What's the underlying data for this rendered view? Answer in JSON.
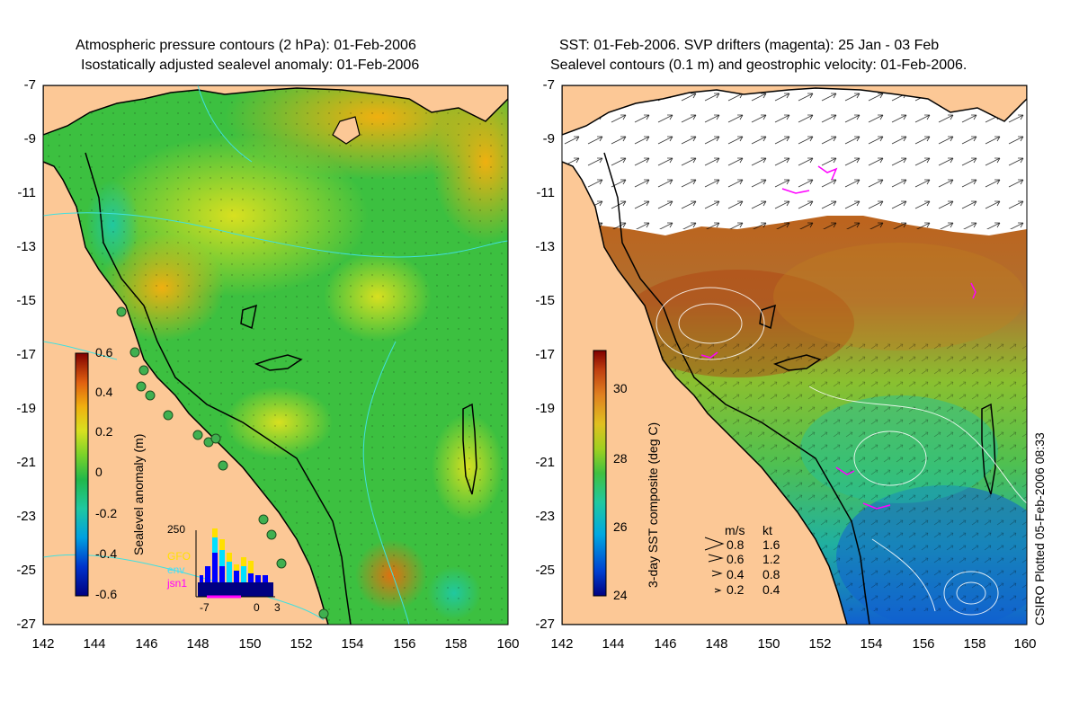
{
  "left": {
    "title1": "Atmospheric pressure contours (2 hPa): 01-Feb-2006",
    "title2": "Isostatically adjusted sealevel anomaly: 01-Feb-2006",
    "colorbar_label": "Sealevel anomaly (m)",
    "colorbar_ticks": [
      "0.6",
      "0.4",
      "0.2",
      "0",
      "-0.2",
      "-0.4",
      "-0.6"
    ],
    "colormap": [
      "#000080",
      "#0033cc",
      "#00a0e0",
      "#20c8a0",
      "#22b84a",
      "#7ad22a",
      "#d8e020",
      "#f0b010",
      "#e06010",
      "#b02010",
      "#800000"
    ],
    "histogram": {
      "y_tick": "250",
      "x_ticks": [
        "-7",
        "0",
        "3"
      ],
      "legend": [
        {
          "label": "GFO",
          "color": "#ffe000"
        },
        {
          "label": "env",
          "color": "#40e0ff"
        },
        {
          "label": "jsn1",
          "color": "#ff00ff"
        }
      ]
    }
  },
  "right": {
    "title1": "SST: 01-Feb-2006. SVP drifters (magenta): 25 Jan - 03 Feb",
    "title2": "Sealevel contours (0.1 m) and geostrophic velocity: 01-Feb-2006.",
    "colorbar_label": "3-day SST composite (deg C)",
    "colorbar_ticks": [
      "30",
      "28",
      "26",
      "24"
    ],
    "colormap": [
      "#000080",
      "#0040d0",
      "#00a8e0",
      "#20c8a0",
      "#40c040",
      "#a0d020",
      "#e0c020",
      "#e08020",
      "#c04010",
      "#800000"
    ],
    "velocity_legend": {
      "header": [
        "m/s",
        "kt"
      ],
      "rows": [
        [
          "0.8",
          "1.6"
        ],
        [
          "0.6",
          "1.2"
        ],
        [
          "0.4",
          "0.8"
        ],
        [
          "0.2",
          "0.4"
        ]
      ]
    },
    "credit": "CSIRO Plotted 05-Feb-2006 08:33"
  },
  "axes": {
    "x_ticks": [
      "142",
      "144",
      "146",
      "148",
      "150",
      "152",
      "154",
      "156",
      "158",
      "160"
    ],
    "y_ticks": [
      "-7",
      "-9",
      "-11",
      "-13",
      "-15",
      "-17",
      "-19",
      "-21",
      "-23",
      "-25",
      "-27"
    ]
  },
  "colors": {
    "land": "#fcc896",
    "coast": "#000000",
    "no_data": "#ffffff",
    "contour_cyan": "#40e0e0",
    "drifter": "#ff00ff"
  }
}
